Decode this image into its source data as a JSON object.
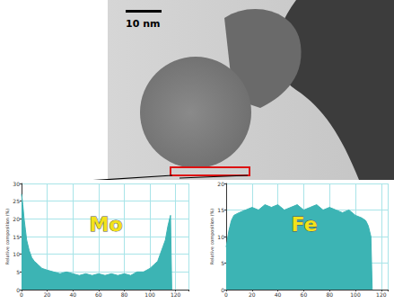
{
  "chart_data": [
    {
      "type": "area",
      "title": "Mo",
      "y_label": "Relative composition (%)",
      "color": "#3cb4b4",
      "grid": true,
      "x": [
        0,
        1,
        2,
        3,
        4,
        6,
        8,
        10,
        13,
        16,
        20,
        25,
        30,
        35,
        40,
        45,
        50,
        55,
        60,
        65,
        70,
        75,
        80,
        85,
        90,
        95,
        100,
        103,
        106,
        108,
        110,
        112,
        114,
        116,
        117
      ],
      "values": [
        27,
        24,
        20,
        17,
        14,
        11,
        9,
        8,
        7,
        6,
        5.5,
        5,
        4.5,
        5,
        4.5,
        4,
        4.5,
        4,
        4.5,
        4,
        4.5,
        4,
        4.5,
        4,
        5,
        5,
        6,
        7,
        8,
        10,
        12,
        14,
        18,
        21,
        0
      ],
      "xlim": [
        0,
        130
      ],
      "xticks": [
        0,
        20,
        40,
        60,
        80,
        100,
        120
      ],
      "ylim": [
        0,
        30
      ],
      "yticks": [
        0,
        5,
        10,
        15,
        20,
        25,
        30
      ]
    },
    {
      "type": "area",
      "title": "Fe",
      "y_label": "Relative composition (%)",
      "color": "#3cb4b4",
      "grid": true,
      "x": [
        0,
        2,
        4,
        6,
        10,
        15,
        20,
        25,
        30,
        35,
        40,
        45,
        50,
        55,
        60,
        65,
        70,
        75,
        80,
        85,
        90,
        95,
        100,
        105,
        108,
        110,
        112,
        113
      ],
      "values": [
        8,
        11,
        13,
        14,
        14.5,
        15,
        15.5,
        15,
        16,
        15.5,
        16,
        15,
        15.5,
        16,
        15,
        15.5,
        16,
        15,
        15.5,
        15,
        14.5,
        15,
        14,
        13.5,
        13,
        12,
        10,
        0
      ],
      "xlim": [
        0,
        125
      ],
      "xticks": [
        0,
        20,
        40,
        60,
        80,
        100,
        120
      ],
      "ylim": [
        0,
        20
      ],
      "yticks": [
        0,
        5,
        10,
        15,
        20
      ]
    }
  ],
  "image": {
    "scale_bar": "10 nm"
  }
}
